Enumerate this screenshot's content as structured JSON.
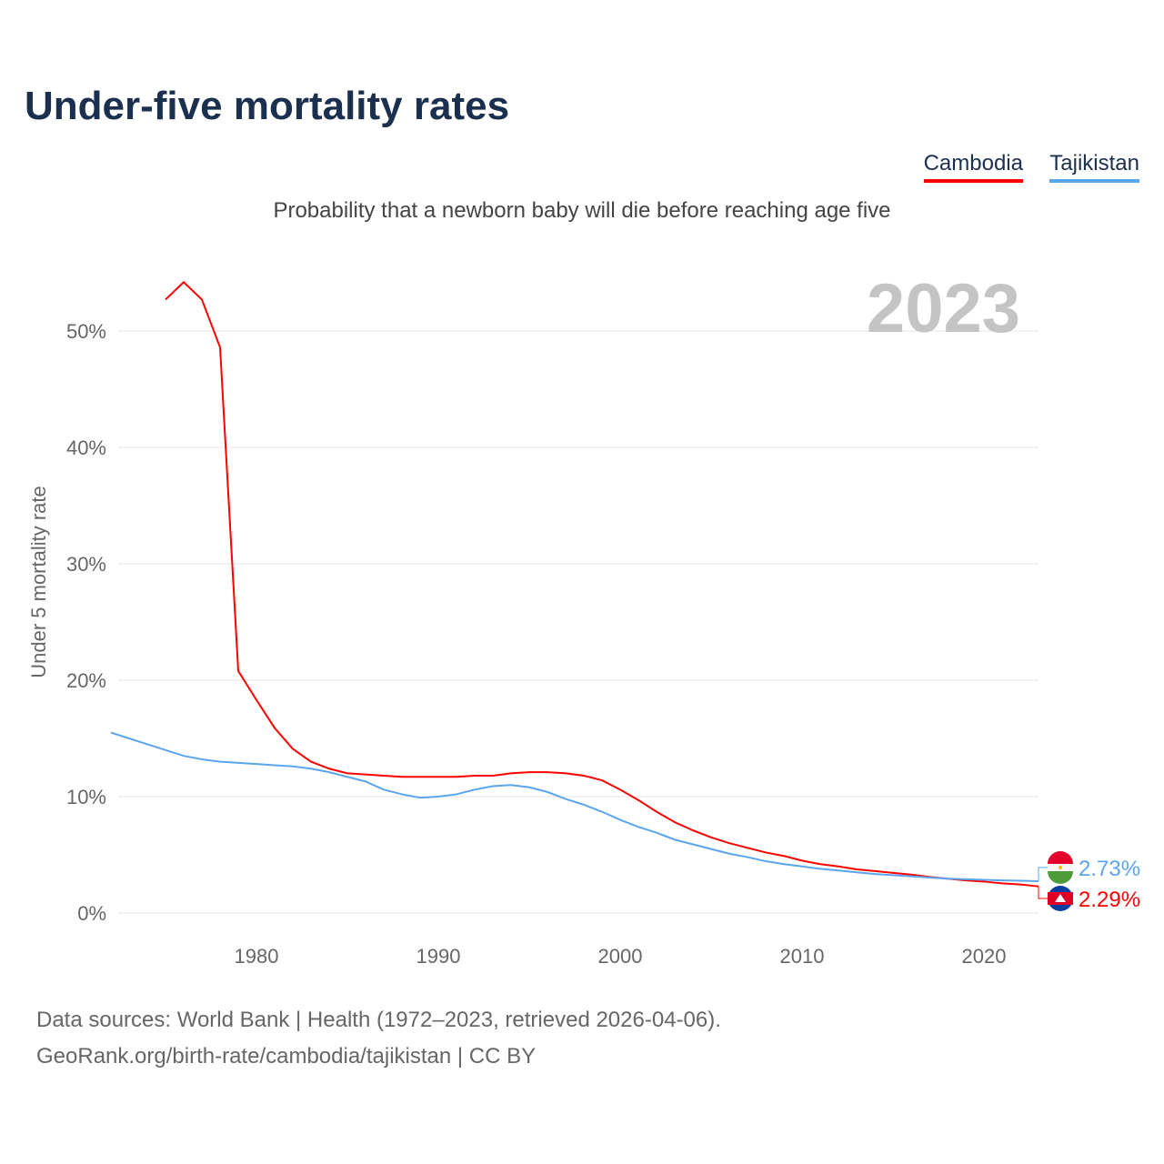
{
  "title": "Under-five mortality rates",
  "subtitle": "Probability that a newborn baby will die before reaching age five",
  "year_label": "2023",
  "legend": [
    {
      "name": "Cambodia",
      "color": "#ff0000"
    },
    {
      "name": "Tajikistan",
      "color": "#5aa5f0"
    }
  ],
  "source_line1": "Data sources: World Bank | Health (1972–2023, retrieved 2026-04-06).",
  "source_line2": "GeoRank.org/birth-rate/cambodia/tajikistan | CC BY",
  "chart_data": {
    "type": "line",
    "title": "Under-five mortality rates",
    "ylabel": "Under 5 mortality rate",
    "xlabel": "",
    "xlim": [
      1972,
      2023
    ],
    "ylim": [
      0,
      50
    ],
    "yticks": [
      0,
      10,
      20,
      30,
      40,
      50
    ],
    "ytick_labels": [
      "0%",
      "10%",
      "20%",
      "30%",
      "40%",
      "50%"
    ],
    "xticks": [
      1980,
      1990,
      2000,
      2010,
      2020
    ],
    "grid": true,
    "legend_position": "top-right",
    "end_labels": {
      "Cambodia": "2.29%",
      "Tajikistan": "2.73%"
    },
    "series": [
      {
        "name": "Cambodia",
        "start_year": 1975,
        "values": [
          52.7,
          54.2,
          52.7,
          48.6,
          20.8,
          18.3,
          15.9,
          14.1,
          13.0,
          12.4,
          12.0,
          11.9,
          11.8,
          11.7,
          11.7,
          11.7,
          11.7,
          11.8,
          11.8,
          12.0,
          12.1,
          12.1,
          12.0,
          11.8,
          11.4,
          10.6,
          9.7,
          8.7,
          7.8,
          7.1,
          6.5,
          6.0,
          5.6,
          5.2,
          4.9,
          4.5,
          4.2,
          4.0,
          3.75,
          3.6,
          3.45,
          3.3,
          3.1,
          2.95,
          2.8,
          2.7,
          2.55,
          2.45,
          2.29
        ]
      },
      {
        "name": "Tajikistan",
        "start_year": 1972,
        "values": [
          15.5,
          15.0,
          14.5,
          14.0,
          13.5,
          13.2,
          13.0,
          12.9,
          12.8,
          12.7,
          12.6,
          12.4,
          12.1,
          11.7,
          11.3,
          10.6,
          10.2,
          9.9,
          10.0,
          10.2,
          10.6,
          10.9,
          11.0,
          10.8,
          10.4,
          9.8,
          9.3,
          8.7,
          8.0,
          7.4,
          6.9,
          6.3,
          5.9,
          5.5,
          5.1,
          4.8,
          4.45,
          4.2,
          4.0,
          3.8,
          3.65,
          3.5,
          3.35,
          3.25,
          3.15,
          3.05,
          2.95,
          2.9,
          2.85,
          2.8,
          2.77,
          2.73
        ]
      }
    ]
  }
}
